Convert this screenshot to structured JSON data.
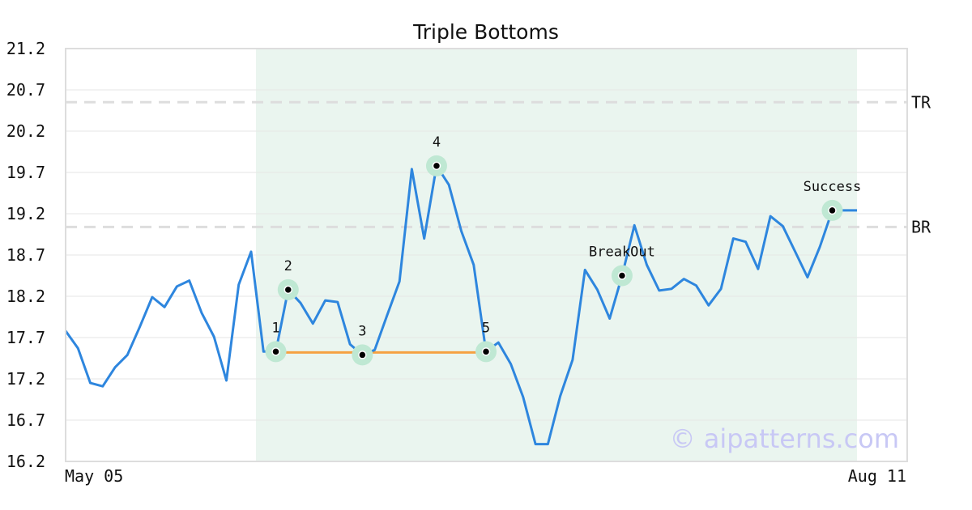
{
  "chart_data": {
    "type": "line",
    "title": "Triple Bottoms",
    "xlabel": "",
    "ylabel": "",
    "x_tick_labels": [
      "May 05",
      "Aug 11"
    ],
    "yticks": [
      16.2,
      16.7,
      17.2,
      17.7,
      18.2,
      18.7,
      19.2,
      19.7,
      20.2,
      20.7,
      21.2
    ],
    "ylim": [
      16.2,
      21.2
    ],
    "grid": true,
    "colors": {
      "line": "#2e86de",
      "bottom_line": "#f5a142",
      "band": "#eaf5ef",
      "marker_halo": "#bfe8d3",
      "ref_line": "#dddddd",
      "watermark": "#c8c8f5"
    },
    "series": [
      {
        "values": [
          17.78,
          17.57,
          17.15,
          17.11,
          17.34,
          17.49,
          17.83,
          18.19,
          18.07,
          18.32,
          18.39,
          18.0,
          17.71,
          17.18,
          18.34,
          18.74,
          17.53,
          17.53,
          18.28,
          18.12,
          17.87,
          18.15,
          18.13,
          17.62,
          17.49,
          17.55,
          17.97,
          18.38,
          19.74,
          18.9,
          19.78,
          19.55,
          18.99,
          18.58,
          17.53,
          17.64,
          17.38,
          16.98,
          16.41,
          16.41,
          16.99,
          17.43,
          18.52,
          18.28,
          17.93,
          18.45,
          19.06,
          18.58,
          18.27,
          18.29,
          18.41,
          18.33,
          18.09,
          18.29,
          18.9,
          18.86,
          18.53,
          19.17,
          19.05,
          18.74,
          18.43,
          18.8,
          19.24,
          19.24,
          19.24
        ]
      }
    ],
    "pattern_range_index": [
      15,
      64
    ],
    "reference_lines": [
      {
        "label": "TR",
        "value": 20.55
      },
      {
        "label": "BR",
        "value": 19.04
      }
    ],
    "bottom_line": {
      "from_index": 17,
      "to_index": 34,
      "value": 17.52
    },
    "annotations": [
      {
        "label": "1",
        "index": 17,
        "value": 17.53
      },
      {
        "label": "2",
        "index": 18,
        "value": 18.28
      },
      {
        "label": "3",
        "index": 24,
        "value": 17.49
      },
      {
        "label": "4",
        "index": 30,
        "value": 19.78
      },
      {
        "label": "5",
        "index": 34,
        "value": 17.53
      },
      {
        "label": "BreakOut",
        "index": 45,
        "value": 18.45
      },
      {
        "label": "Success",
        "index": 62,
        "value": 19.24
      }
    ]
  },
  "watermark": "© aipatterns.com"
}
